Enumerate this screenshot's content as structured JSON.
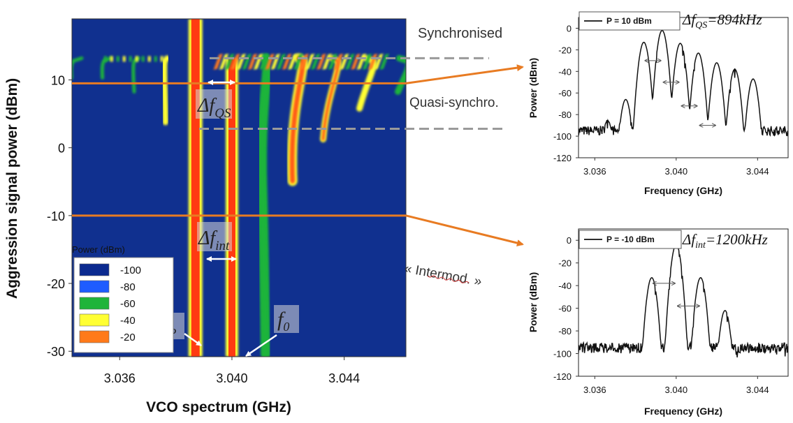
{
  "chart_data": [
    {
      "type": "heatmap",
      "xlabel": "VCO spectrum (GHz)",
      "ylabel": "Aggression signal power (dBm)",
      "x_ticks": [
        "3.036",
        "3.040",
        "3.044"
      ],
      "x_tick_values": [
        3.036,
        3.04,
        3.044
      ],
      "y_ticks": [
        "10",
        "0",
        "-10",
        "-20",
        "-30"
      ],
      "y_tick_values": [
        10,
        0,
        -10,
        -20,
        -30
      ],
      "xlim": [
        3.0343,
        3.0462
      ],
      "ylim": [
        -30.8,
        19.0
      ],
      "legend": {
        "title": "Power (dBm)",
        "placement": "lower-left",
        "entries": [
          {
            "label": "-100",
            "color": "#0b2a8f"
          },
          {
            "label": "-80",
            "color": "#1f5cff"
          },
          {
            "label": "-60",
            "color": "#1fb43a"
          },
          {
            "label": "-40",
            "color": "#ffff33"
          },
          {
            "label": "-20",
            "color": "#ff7a1a"
          }
        ]
      },
      "background_color": "#10308f",
      "regions": [
        {
          "label": "Synchronised",
          "y_boundary": 13.2
        },
        {
          "label": "Quasi-synchro.",
          "y_lower": 2.8,
          "y_upper": 13.2
        },
        {
          "label": "« Intermod. »"
        }
      ],
      "reference_lines": [
        {
          "y": 9.5,
          "color": "#e87b22"
        },
        {
          "y": -10,
          "color": "#e87b22"
        }
      ],
      "annotations": {
        "df_qs": {
          "sym": "Δf",
          "sub": "QS"
        },
        "df_int": {
          "sym": "Δf",
          "sub": "int"
        },
        "f_p": {
          "sym": "f",
          "sub": "P",
          "x": 3.0387
        },
        "f_0": {
          "sym": "f",
          "sub": "0",
          "x": 3.04
        }
      },
      "tones": {
        "pump_x": 3.0387,
        "vco_x": 3.04,
        "spacing_at_10dBm": 0.000894,
        "spacing_at_minus10dBm": 0.0012
      }
    },
    {
      "type": "line",
      "xlabel": "Frequency (GHz)",
      "ylabel": "Power (dBm)",
      "x_ticks": [
        "3.036",
        "3.040",
        "3.044"
      ],
      "x_tick_values": [
        3.036,
        3.04,
        3.044
      ],
      "y_ticks": [
        "0",
        "-20",
        "-40",
        "-60",
        "-80",
        "-100",
        "-120"
      ],
      "y_tick_values": [
        0,
        -20,
        -40,
        -60,
        -80,
        -100,
        -120
      ],
      "xlim": [
        3.0352,
        3.0455
      ],
      "ylim": [
        -120,
        10
      ],
      "legend": "P = 10 dBm",
      "annotation": {
        "sym": "Δf",
        "sub": "QS",
        "value": "=894kHz"
      },
      "noise_floor": -95,
      "peaks": [
        {
          "x": 3.03663,
          "y": -86
        },
        {
          "x": 3.03752,
          "y": -66
        },
        {
          "x": 3.03841,
          "y": -13
        },
        {
          "x": 3.03931,
          "y": -2
        },
        {
          "x": 3.0402,
          "y": -14
        },
        {
          "x": 3.04109,
          "y": -23
        },
        {
          "x": 3.04199,
          "y": -32
        },
        {
          "x": 3.04288,
          "y": -38
        },
        {
          "x": 3.04378,
          "y": -47
        }
      ],
      "spacing_arrows_y": [
        -30,
        -50,
        -72,
        -90
      ]
    },
    {
      "type": "line",
      "xlabel": "Frequency (GHz)",
      "ylabel": "Power (dBm)",
      "x_ticks": [
        "3.036",
        "3.040",
        "3.044"
      ],
      "x_tick_values": [
        3.036,
        3.04,
        3.044
      ],
      "y_ticks": [
        "0",
        "-20",
        "-40",
        "-60",
        "-80",
        "-100",
        "-120"
      ],
      "y_tick_values": [
        0,
        -20,
        -40,
        -60,
        -80,
        -100,
        -120
      ],
      "xlim": [
        3.0352,
        3.0455
      ],
      "ylim": [
        -120,
        10
      ],
      "legend": "P = -10 dBm",
      "annotation": {
        "sym": "Δf",
        "sub": "int",
        "value": "=1200kHz"
      },
      "noise_floor": -95,
      "peaks": [
        {
          "x": 3.0388,
          "y": -33
        },
        {
          "x": 3.04,
          "y": -4
        },
        {
          "x": 3.0412,
          "y": -33
        },
        {
          "x": 3.0424,
          "y": -62
        }
      ],
      "spacing_arrows_y": [
        -38,
        -58,
        -78
      ]
    }
  ]
}
